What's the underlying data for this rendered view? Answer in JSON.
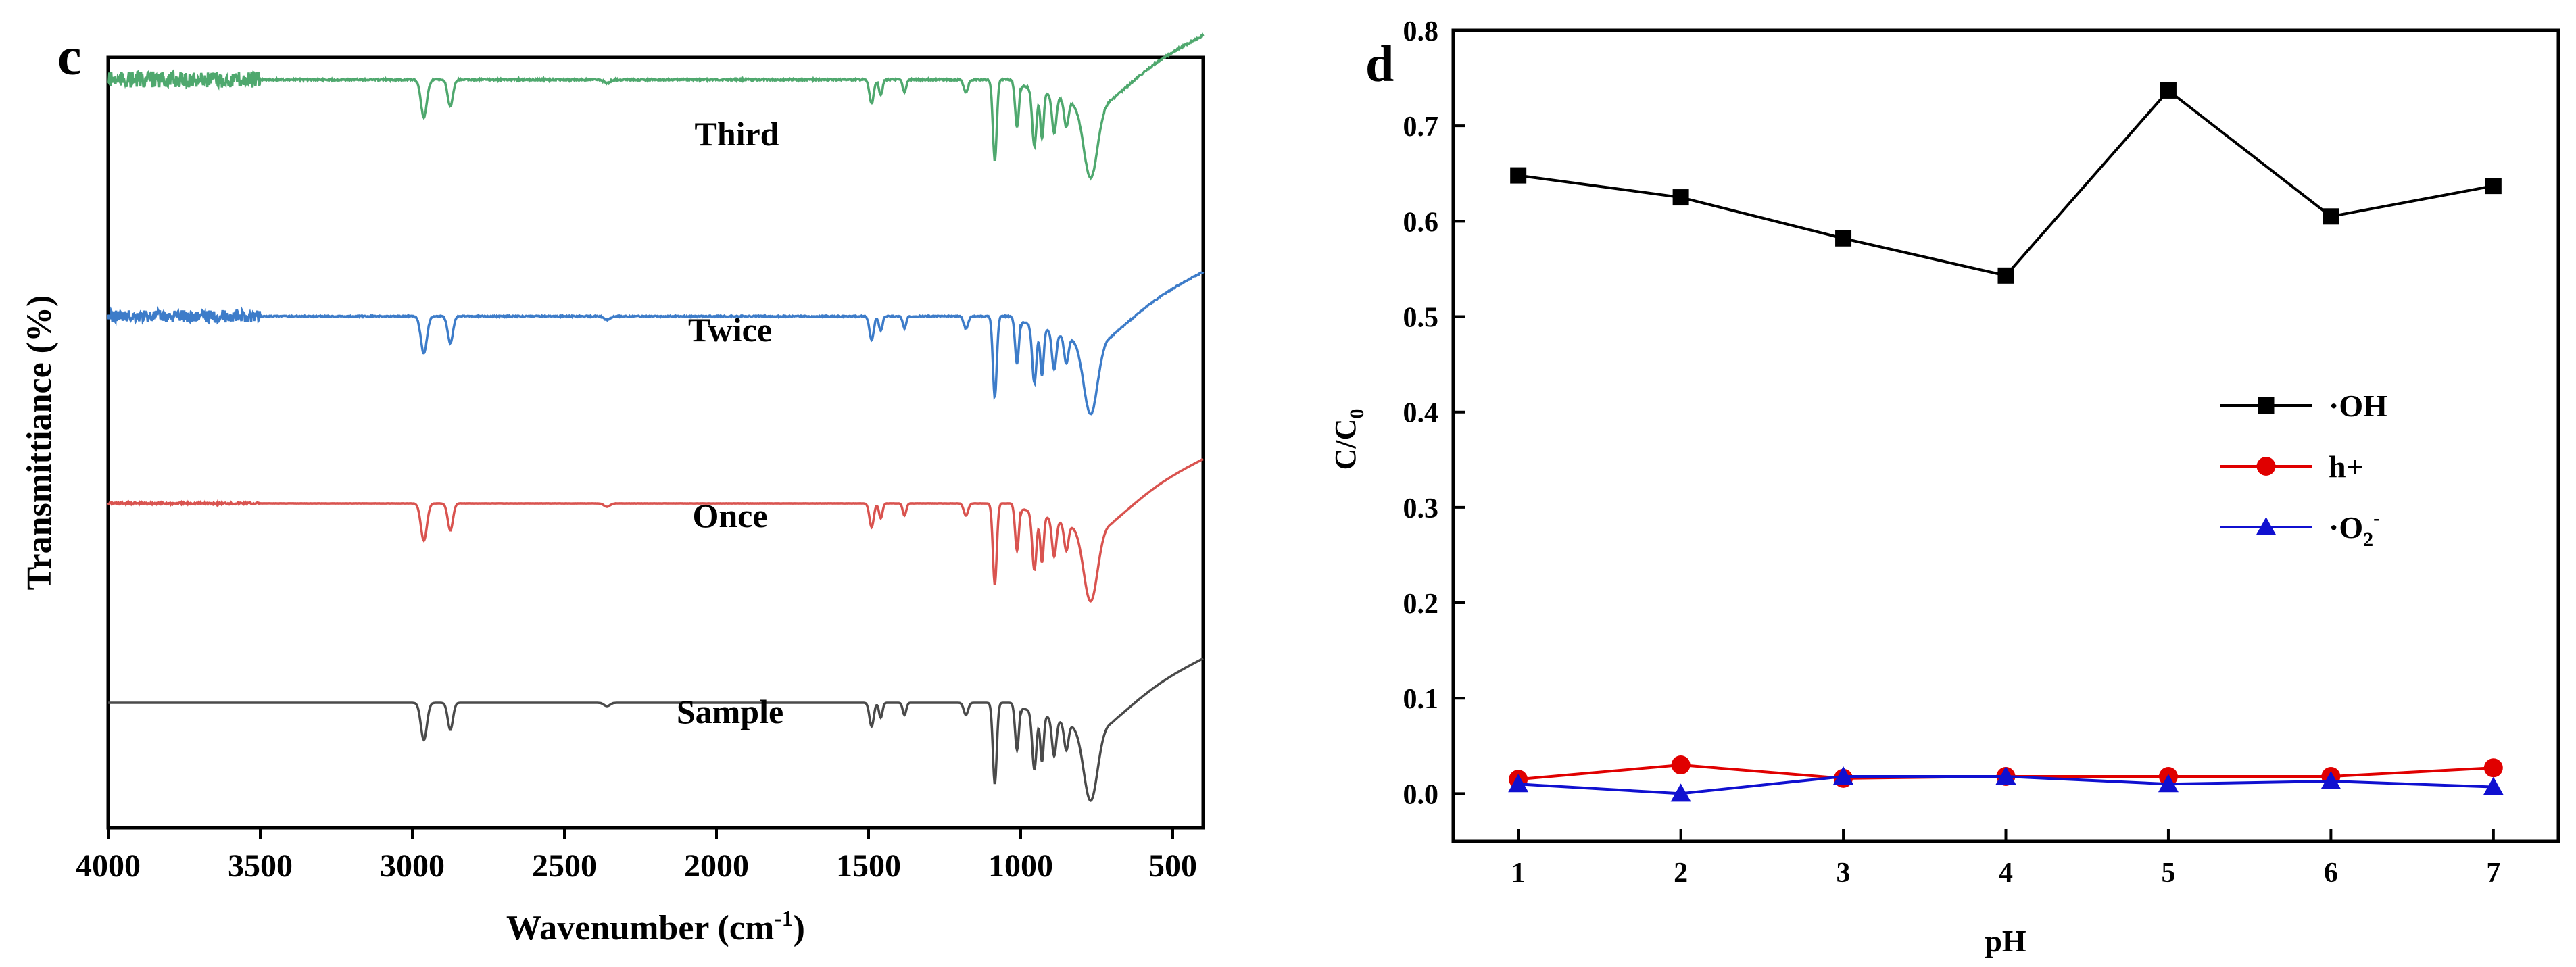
{
  "colors": {
    "sample": "#4a4a4a",
    "once": "#d9534f",
    "twice": "#3d7cc9",
    "third": "#4fa86e",
    "oh": "#000000",
    "h": "#e00000",
    "o2": "#1010d0"
  },
  "panel_c": {
    "letter": "c",
    "ylabel": "Transmittiance (%)",
    "xlabel_main": "Wavenumber (cm",
    "xlabel_sup": "-1",
    "xlabel_close": ")"
  },
  "panel_d": {
    "letter": "d",
    "ylabel_main": "C/C",
    "ylabel_sub": "0",
    "xlabel": "pH",
    "legend": [
      {
        "label": "·OH",
        "sub": "",
        "sup": ""
      },
      {
        "label": "h+",
        "sub": "",
        "sup": ""
      },
      {
        "label": "·O",
        "sub": "2",
        "sup": "-"
      }
    ]
  },
  "chart_data": [
    {
      "type": "line",
      "title": "",
      "xlabel": "Wavenumber (cm-1)",
      "ylabel": "Transmittiance (%)",
      "xlim": [
        4000,
        400
      ],
      "x_reversed": true,
      "xticks": [
        4000,
        3500,
        3000,
        2500,
        2000,
        1500,
        1000,
        500
      ],
      "yticks": [],
      "baseline_positions": [
        0.0,
        1.0,
        2.0,
        3.0
      ],
      "peaks_cm-1": [
        2960,
        2870,
        1490,
        1460,
        1380,
        1180,
        1080,
        1010,
        950,
        920,
        880,
        770
      ],
      "series": [
        {
          "name": "Sample",
          "label": "Sample",
          "offset": 0.0,
          "noise": 0.0
        },
        {
          "name": "Once",
          "label": "Once",
          "offset": 1.0,
          "noise": 0.005
        },
        {
          "name": "Twice",
          "label": "Twice",
          "offset": 2.0,
          "noise": 0.03
        },
        {
          "name": "Third",
          "label": "Third",
          "offset": 3.0,
          "noise": 0.04
        }
      ]
    },
    {
      "type": "line",
      "title": "",
      "xlabel": "pH",
      "ylabel": "C/C0",
      "xlim": [
        0.6,
        7.4
      ],
      "ylim": [
        -0.05,
        0.8
      ],
      "xticks": [
        1,
        2,
        3,
        4,
        5,
        6,
        7
      ],
      "yticks": [
        0.0,
        0.1,
        0.2,
        0.3,
        0.4,
        0.5,
        0.6,
        0.7,
        0.8
      ],
      "ytick_labels": [
        "0.0",
        "0.1",
        "0.2",
        "0.3",
        "0.4",
        "0.5",
        "0.6",
        "0.7",
        "0.8"
      ],
      "x": [
        1,
        2,
        3,
        4,
        5,
        6,
        7
      ],
      "legend_position": "center-right",
      "series": [
        {
          "name": "·OH",
          "marker": "square",
          "values": [
            0.648,
            0.625,
            0.582,
            0.543,
            0.737,
            0.605,
            0.637
          ]
        },
        {
          "name": "h+",
          "marker": "circle",
          "values": [
            0.015,
            0.03,
            0.016,
            0.018,
            0.018,
            0.018,
            0.027
          ]
        },
        {
          "name": "·O2-",
          "marker": "triangle",
          "values": [
            0.01,
            0.0,
            0.018,
            0.018,
            0.01,
            0.013,
            0.007
          ]
        }
      ]
    }
  ]
}
